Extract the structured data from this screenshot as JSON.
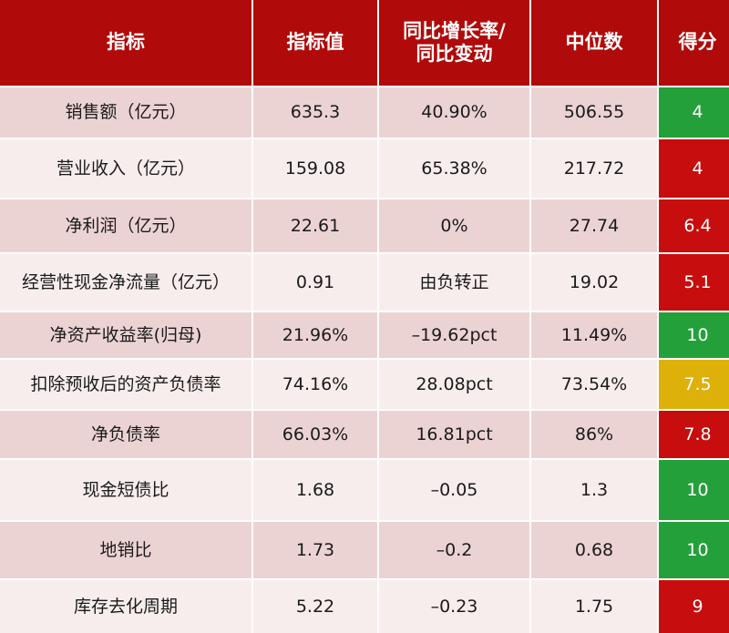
{
  "header": {
    "indicator": "指标",
    "value": "指标值",
    "yoy": "同比增长率/\n同比变动",
    "median": "中位数",
    "score": "得分"
  },
  "colors": {
    "header_bg": "#b00a0a",
    "row_dark": "#ecd3d3",
    "row_light": "#f8eded",
    "score_green": "#23a03a",
    "score_red": "#c70d0d",
    "score_yellow": "#ddb109"
  },
  "rows": [
    {
      "indicator": "销售额（亿元）",
      "value": "635.3",
      "yoy": "40.90%",
      "median": "506.55",
      "score": "4",
      "score_color": "green"
    },
    {
      "indicator": "营业收入（亿元）",
      "value": "159.08",
      "yoy": "65.38%",
      "median": "217.72",
      "score": "4",
      "score_color": "red"
    },
    {
      "indicator": "净利润（亿元）",
      "value": "22.61",
      "yoy": "0%",
      "median": "27.74",
      "score": "6.4",
      "score_color": "red"
    },
    {
      "indicator": "经营性现金净流量（亿元）",
      "value": "0.91",
      "yoy": "由负转正",
      "median": "19.02",
      "score": "5.1",
      "score_color": "red"
    },
    {
      "indicator": "净资产收益率(归母)",
      "value": "21.96%",
      "yoy": "–19.62pct",
      "median": "11.49%",
      "score": "10",
      "score_color": "green"
    },
    {
      "indicator": "扣除预收后的资产负债率",
      "value": "74.16%",
      "yoy": "28.08pct",
      "median": "73.54%",
      "score": "7.5",
      "score_color": "yellow"
    },
    {
      "indicator": "净负债率",
      "value": "66.03%",
      "yoy": "16.81pct",
      "median": "86%",
      "score": "7.8",
      "score_color": "red"
    },
    {
      "indicator": "现金短债比",
      "value": "1.68",
      "yoy": "–0.05",
      "median": "1.3",
      "score": "10",
      "score_color": "green"
    },
    {
      "indicator": "地销比",
      "value": "1.73",
      "yoy": "–0.2",
      "median": "0.68",
      "score": "10",
      "score_color": "green"
    },
    {
      "indicator": "库存去化周期",
      "value": "5.22",
      "yoy": "–0.23",
      "median": "1.75",
      "score": "9",
      "score_color": "red"
    }
  ]
}
